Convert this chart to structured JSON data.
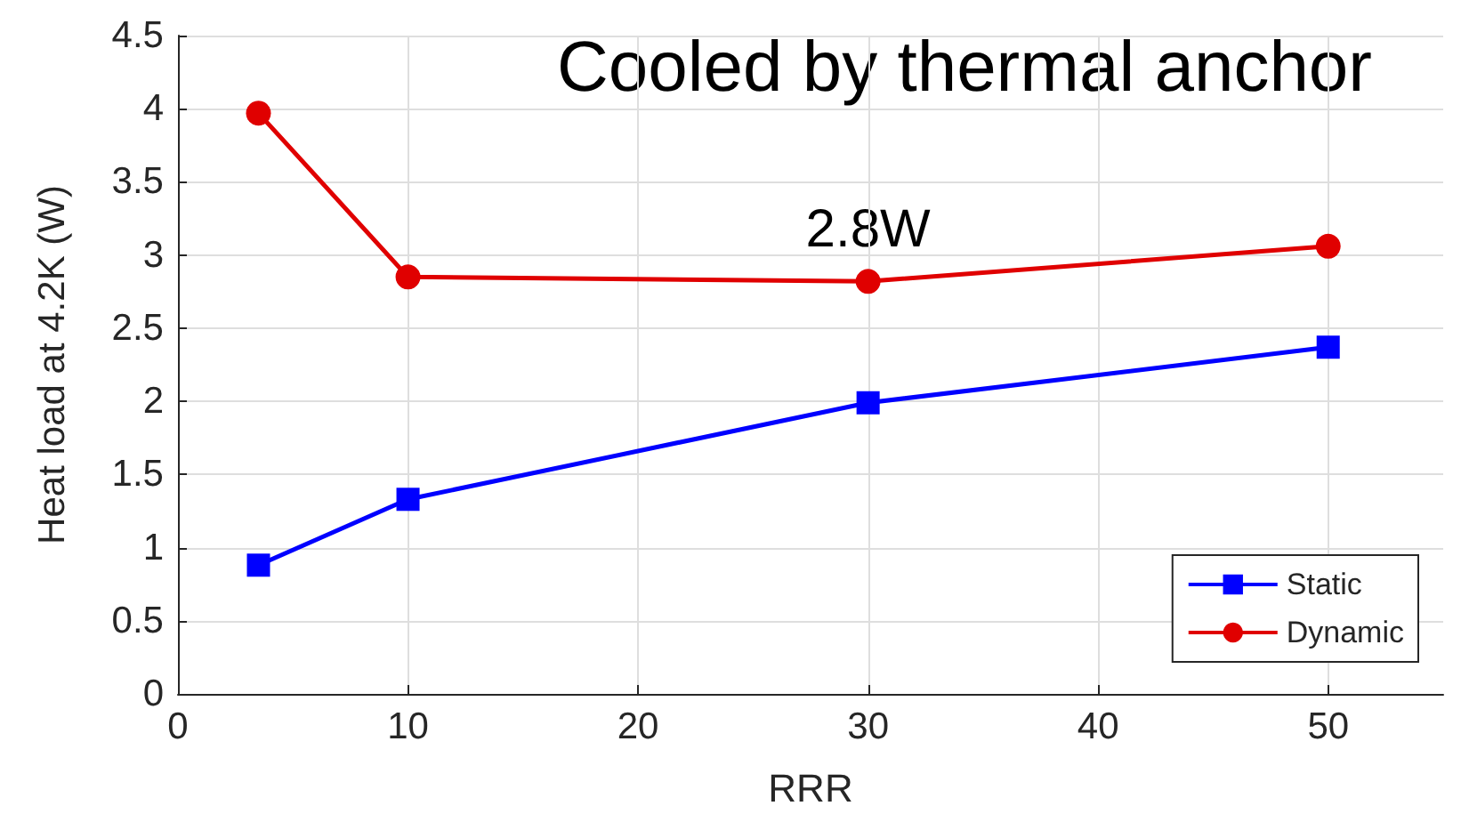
{
  "chart_data": {
    "type": "line",
    "xlabel": "RRR",
    "ylabel": "Heat load at 4.2K (W)",
    "x": [
      3.5,
      10,
      30,
      50
    ],
    "series": [
      {
        "name": "Static",
        "color": "#0000ff",
        "marker": "square",
        "values": [
          0.88,
          1.33,
          1.99,
          2.37
        ]
      },
      {
        "name": "Dynamic",
        "color": "#e00000",
        "marker": "circle",
        "values": [
          3.97,
          2.85,
          2.82,
          3.06
        ]
      }
    ],
    "xlim": [
      0,
      55
    ],
    "xticks": [
      0,
      10,
      20,
      30,
      40,
      50
    ],
    "ylim": [
      0,
      4.5
    ],
    "yticks": [
      0,
      0.5,
      1,
      1.5,
      2,
      2.5,
      3,
      3.5,
      4,
      4.5
    ],
    "grid": true,
    "legend": "bottom right",
    "annotations": [
      "Cooled by thermal anchor",
      {
        "text": "2.8W",
        "x": 30,
        "y": 2.82
      }
    ]
  }
}
